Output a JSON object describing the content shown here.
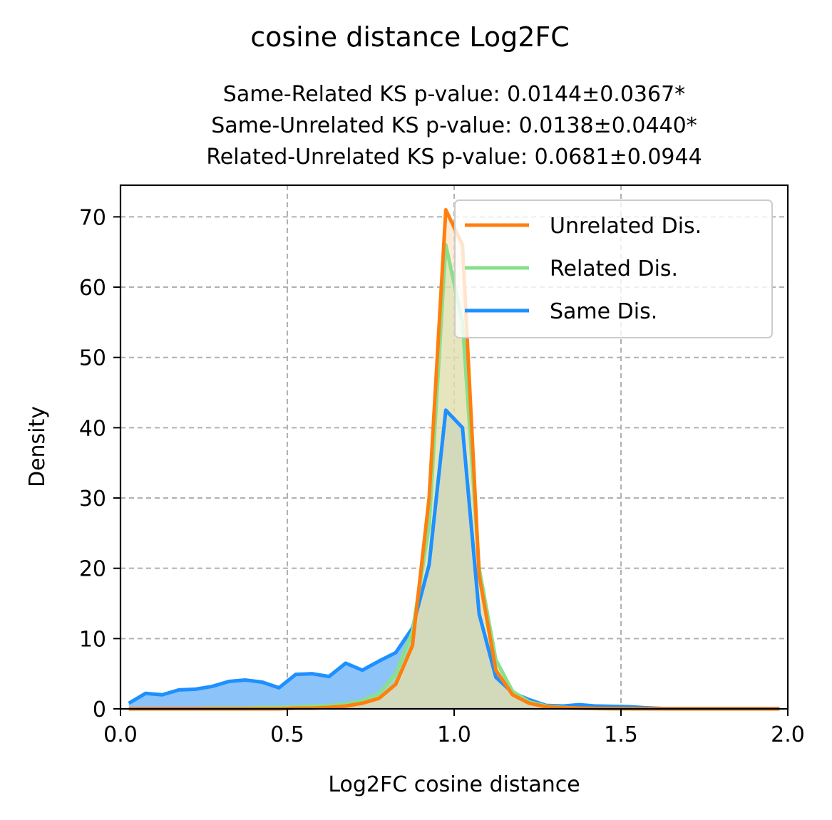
{
  "chart_data": {
    "type": "area",
    "suptitle": "cosine distance Log2FC",
    "title_lines": [
      "Same-Related KS p-value: 0.0144±0.0367*",
      "Same-Unrelated KS p-value: 0.0138±0.0440*",
      "Related-Unrelated KS p-value: 0.0681±0.0944"
    ],
    "xlabel": "Log2FC cosine distance",
    "ylabel": "Density",
    "xlim": [
      0,
      2
    ],
    "ylim": [
      0,
      74.5
    ],
    "xticks": [
      0,
      0.5,
      1,
      1.5,
      2
    ],
    "xtick_labels": [
      "0.0",
      "0.5",
      "1.0",
      "1.5",
      "2.0"
    ],
    "yticks": [
      0,
      10,
      20,
      30,
      40,
      50,
      60,
      70
    ],
    "ytick_labels": [
      "0",
      "10",
      "20",
      "30",
      "40",
      "50",
      "60",
      "70"
    ],
    "grid": true,
    "legend_position": "top-right",
    "series": [
      {
        "name": "Unrelated Dis.",
        "color": "#ff7f0e",
        "fill": "#ffdcb4",
        "x": [
          0.025,
          0.075,
          0.125,
          0.175,
          0.225,
          0.275,
          0.325,
          0.375,
          0.425,
          0.475,
          0.525,
          0.575,
          0.625,
          0.675,
          0.725,
          0.775,
          0.825,
          0.875,
          0.925,
          0.975,
          1.025,
          1.075,
          1.125,
          1.175,
          1.225,
          1.275,
          1.325,
          1.375,
          1.425,
          1.475,
          1.525,
          1.575,
          1.625,
          1.675,
          1.725,
          1.775,
          1.825,
          1.875,
          1.925,
          1.975
        ],
        "values": [
          0.0,
          0.0,
          0.0,
          0.0,
          0.0,
          0.0,
          0.0,
          0.0,
          0.0,
          0.0,
          0.1,
          0.1,
          0.2,
          0.4,
          0.8,
          1.5,
          3.5,
          9.0,
          30.0,
          71.0,
          66.0,
          19.0,
          5.5,
          2.0,
          0.8,
          0.3,
          0.15,
          0.1,
          0.05,
          0.03,
          0.02,
          0.01,
          0.0,
          0.0,
          0.0,
          0.0,
          0.0,
          0.0,
          0.0,
          0.0
        ]
      },
      {
        "name": "Related Dis.",
        "color": "#88e08c",
        "fill": "#a8e4a4",
        "x": [
          0.025,
          0.075,
          0.125,
          0.175,
          0.225,
          0.275,
          0.325,
          0.375,
          0.425,
          0.475,
          0.525,
          0.575,
          0.625,
          0.675,
          0.725,
          0.775,
          0.825,
          0.875,
          0.925,
          0.975,
          1.025,
          1.075,
          1.125,
          1.175,
          1.225,
          1.275,
          1.325,
          1.375,
          1.425,
          1.475,
          1.525,
          1.575,
          1.625,
          1.675,
          1.725,
          1.775,
          1.825,
          1.875,
          1.925,
          1.975
        ],
        "values": [
          0.0,
          0.0,
          0.0,
          0.0,
          0.0,
          0.1,
          0.1,
          0.1,
          0.2,
          0.2,
          0.3,
          0.4,
          0.5,
          0.7,
          1.2,
          2.2,
          5.0,
          11.0,
          26.0,
          66.0,
          55.0,
          20.0,
          7.0,
          2.5,
          1.0,
          0.4,
          0.2,
          0.1,
          0.05,
          0.03,
          0.02,
          0.01,
          0.0,
          0.0,
          0.0,
          0.0,
          0.0,
          0.0,
          0.0,
          0.0
        ]
      },
      {
        "name": "Same Dis.",
        "color": "#1e90ff",
        "fill": "#8cc3f8",
        "x": [
          0.025,
          0.075,
          0.125,
          0.175,
          0.225,
          0.275,
          0.325,
          0.375,
          0.425,
          0.475,
          0.525,
          0.575,
          0.625,
          0.675,
          0.725,
          0.775,
          0.825,
          0.875,
          0.925,
          0.975,
          1.025,
          1.075,
          1.125,
          1.175,
          1.225,
          1.275,
          1.325,
          1.375,
          1.425,
          1.475,
          1.525,
          1.575,
          1.625,
          1.675,
          1.725,
          1.775,
          1.825,
          1.875,
          1.925,
          1.975
        ],
        "values": [
          0.8,
          2.2,
          2.0,
          2.7,
          2.8,
          3.2,
          3.9,
          4.1,
          3.8,
          3.0,
          4.9,
          5.0,
          4.6,
          6.5,
          5.5,
          6.8,
          8.0,
          11.5,
          20.5,
          42.5,
          40.0,
          13.5,
          4.5,
          2.3,
          1.3,
          0.5,
          0.4,
          0.6,
          0.4,
          0.35,
          0.3,
          0.15,
          0.05,
          0.05,
          0.05,
          0.05,
          0.05,
          0.05,
          0.05,
          0.05
        ]
      }
    ]
  }
}
